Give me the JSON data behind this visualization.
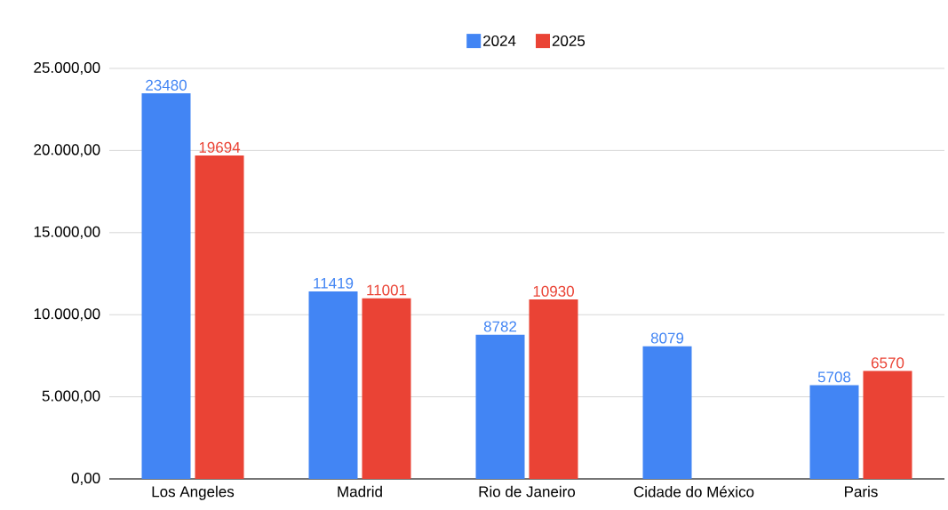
{
  "chart_data": {
    "type": "bar",
    "categories": [
      "Los Angeles",
      "Madrid",
      "Rio de Janeiro",
      "Cidade do México",
      "Paris"
    ],
    "series": [
      {
        "name": "2024",
        "color": "#4285f4",
        "values": [
          23480,
          11419,
          8782,
          8079,
          5708
        ]
      },
      {
        "name": "2025",
        "color": "#ea4335",
        "values": [
          19694,
          11001,
          10930,
          null,
          6570
        ]
      }
    ],
    "ylim": [
      0,
      25000
    ],
    "yticks": [
      {
        "value": 0,
        "label": "0,00"
      },
      {
        "value": 5000,
        "label": "5.000,00"
      },
      {
        "value": 10000,
        "label": "10.000,00"
      },
      {
        "value": 15000,
        "label": "15.000,00"
      },
      {
        "value": 20000,
        "label": "20.000,00"
      },
      {
        "value": 25000,
        "label": "25.000,00"
      }
    ],
    "grid": "y",
    "legend": "top",
    "data_labels": true
  }
}
